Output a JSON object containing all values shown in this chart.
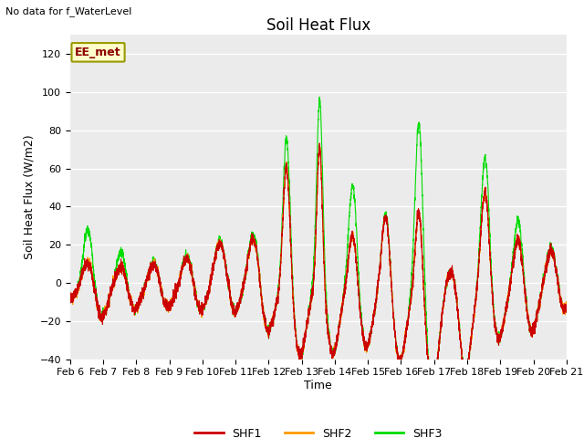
{
  "title": "Soil Heat Flux",
  "xlabel": "Time",
  "ylabel": "Soil Heat Flux (W/m2)",
  "note": "No data for f_WaterLevel",
  "site_label": "EE_met",
  "ylim": [
    -40,
    130
  ],
  "yticks": [
    -40,
    -20,
    0,
    20,
    40,
    60,
    80,
    100,
    120
  ],
  "background_color": "#ebebeb",
  "line_colors": {
    "SHF1": "#cc0000",
    "SHF2": "#ff9900",
    "SHF3": "#00dd00"
  },
  "line_width": 0.8,
  "xtick_labels": [
    "Feb 6",
    "Feb 7",
    "Feb 8",
    "Feb 9",
    "Feb 10",
    "Feb 11",
    "Feb 12",
    "Feb 13",
    "Feb 14",
    "Feb 15",
    "Feb 16",
    "Feb 17",
    "Feb 18",
    "Feb 19",
    "Feb 20",
    "Feb 21"
  ],
  "title_fontsize": 12,
  "axis_fontsize": 9,
  "tick_fontsize": 8,
  "note_fontsize": 8,
  "site_label_fontsize": 9
}
